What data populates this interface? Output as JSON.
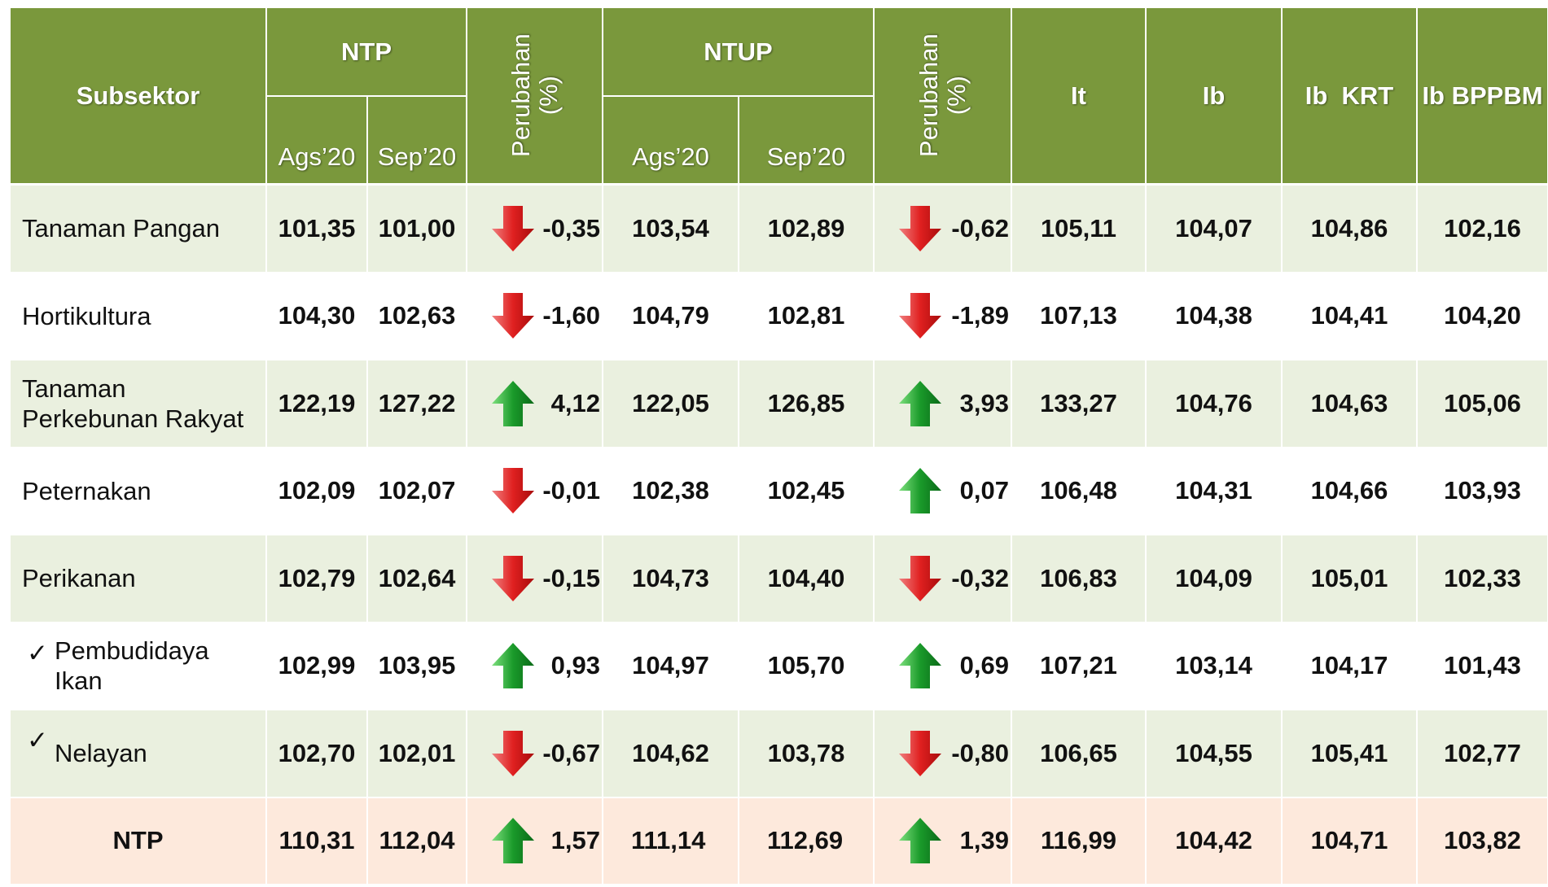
{
  "header": {
    "subsektor": "Subsektor",
    "ntp": "NTP",
    "ntp_months": [
      "Ags’20",
      "Sep’20"
    ],
    "ntup": "NTUP",
    "ntup_months": [
      "Ags’20",
      "Sep’20"
    ],
    "perubahan": [
      "Perubahan",
      "(%)"
    ],
    "it": "It",
    "ib": "Ib",
    "ib_krt": "Ib  KRT",
    "ib_bppbm": "Ib BPPBM"
  },
  "rows": [
    {
      "label": "Tanaman Pangan",
      "values": [
        "101,35",
        "101,00",
        "-0,35",
        "103,54",
        "102,89",
        "-0,62",
        "105,11",
        "104,07",
        "104,86",
        "102,16"
      ]
    },
    {
      "label": "Hortikultura",
      "values": [
        "104,30",
        "102,63",
        "-1,60",
        "104,79",
        "102,81",
        "-1,89",
        "107,13",
        "104,38",
        "104,41",
        "104,20"
      ]
    },
    {
      "label": "Tanaman Perkebunan Rakyat",
      "values": [
        "122,19",
        "127,22",
        "4,12",
        "122,05",
        "126,85",
        "3,93",
        "133,27",
        "104,76",
        "104,63",
        "105,06"
      ]
    },
    {
      "label": "Peternakan",
      "values": [
        "102,09",
        "102,07",
        "-0,01",
        "102,38",
        "102,45",
        "0,07",
        "106,48",
        "104,31",
        "104,66",
        "103,93"
      ]
    },
    {
      "label": "Perikanan",
      "values": [
        "102,79",
        "102,64",
        "-0,15",
        "104,73",
        "104,40",
        "-0,32",
        "106,83",
        "104,09",
        "105,01",
        "102,33"
      ]
    },
    {
      "label": "Pembudidaya Ikan",
      "check": true,
      "values": [
        "102,99",
        "103,95",
        "0,93",
        "104,97",
        "105,70",
        "0,69",
        "107,21",
        "103,14",
        "104,17",
        "101,43"
      ]
    },
    {
      "label": "Nelayan",
      "check": true,
      "values": [
        "102,70",
        "102,01",
        "-0,67",
        "104,62",
        "103,78",
        "-0,80",
        "106,65",
        "104,55",
        "105,41",
        "102,77"
      ]
    },
    {
      "label": "NTP",
      "total": true,
      "values": [
        "110,31",
        "112,04",
        "1,57",
        "111,14",
        "112,69",
        "1,39",
        "116,99",
        "104,42",
        "104,71",
        "103,82"
      ]
    }
  ]
}
